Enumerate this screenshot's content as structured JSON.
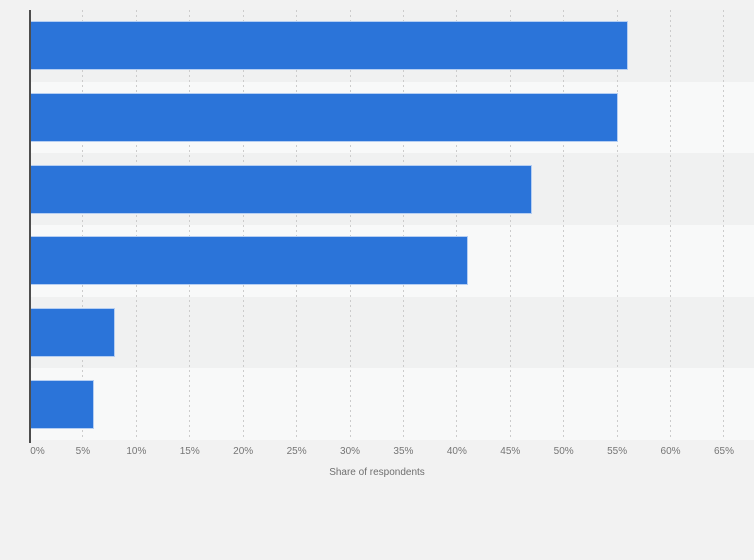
{
  "chart_data": {
    "type": "bar",
    "orientation": "horizontal",
    "title": "",
    "xlabel": "Share of respondents",
    "ylabel": "",
    "categories": [
      "",
      "",
      "",
      "",
      "",
      ""
    ],
    "values": [
      56,
      55,
      47,
      41,
      8,
      6
    ],
    "value_unit": "%",
    "xlim": [
      0,
      65
    ],
    "xtick_step": 5,
    "xtick_labels": [
      "0%",
      "5%",
      "10%",
      "15%",
      "20%",
      "25%",
      "30%",
      "35%",
      "40%",
      "45%",
      "50%",
      "55%",
      "60%",
      "65%"
    ],
    "grid": "vertical-dashed",
    "legend": "none",
    "colors": {
      "bar": "#2b74d9",
      "bar_border": "rgba(255,255,255,0.65)",
      "background": "#f2f2f2",
      "row_stripe_odd": "#f0f1f1",
      "row_stripe_even": "#f8f9f9",
      "gridline": "#cccccc",
      "axis_line": "#4d4d4d",
      "tick_label": "#757575",
      "axis_title": "#6f6f6f"
    }
  }
}
